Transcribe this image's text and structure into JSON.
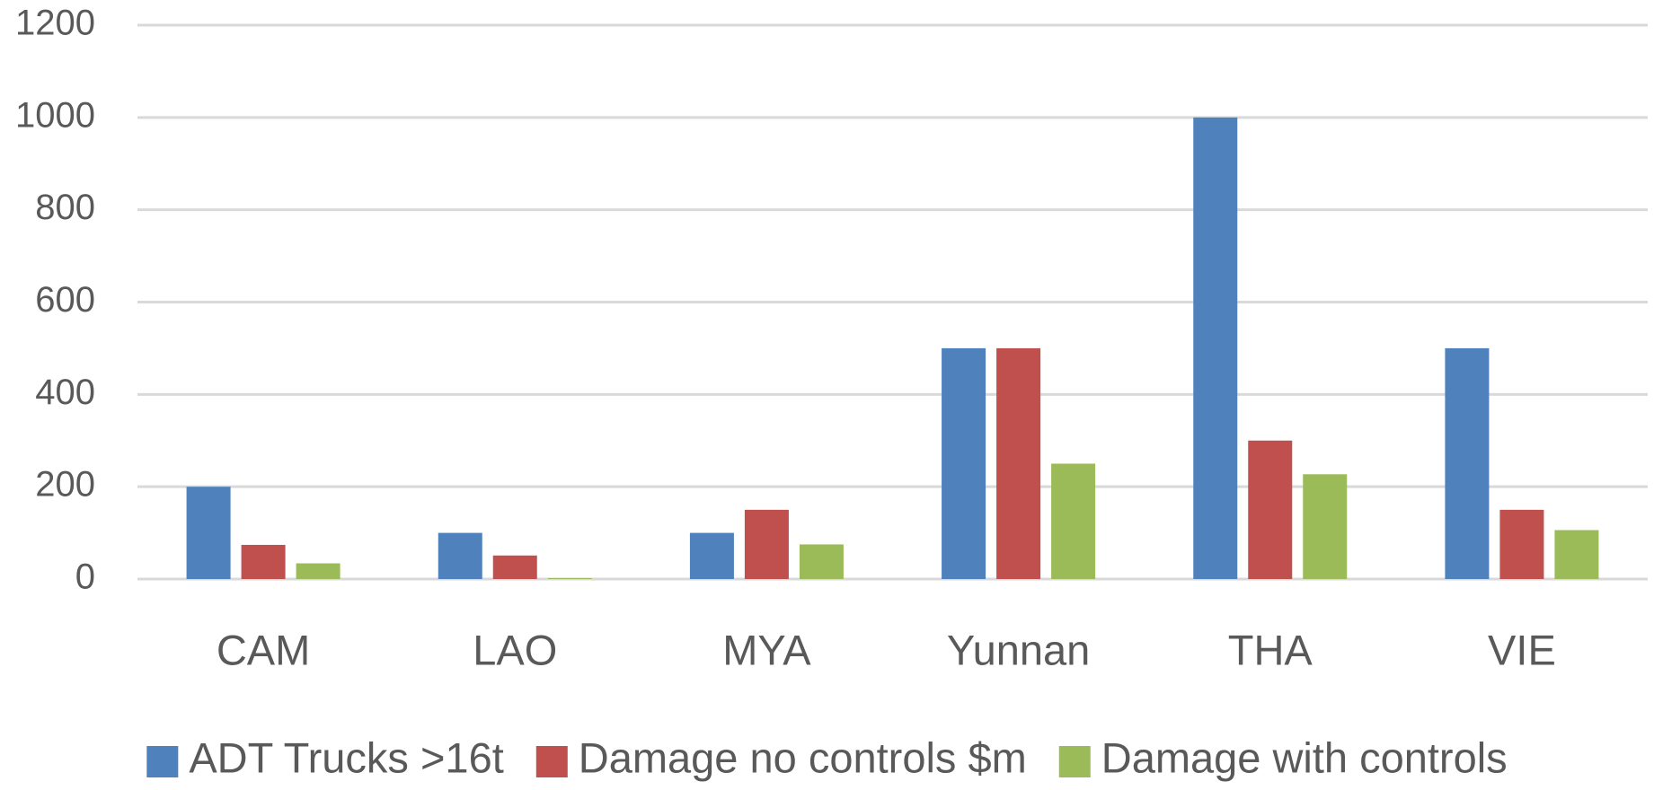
{
  "chart_data": {
    "type": "bar",
    "categories": [
      "CAM",
      "LAO",
      "MYA",
      "Yunnan",
      "THA",
      "VIE"
    ],
    "series": [
      {
        "name": "ADT Trucks >16t",
        "color": "#4f81bd",
        "values": [
          200,
          100,
          100,
          500,
          1000,
          500
        ]
      },
      {
        "name": "Damage no controls $m",
        "color": "#c0504d",
        "values": [
          74,
          51,
          150,
          500,
          300,
          150
        ]
      },
      {
        "name": "Damage with controls",
        "color": "#9bbb59",
        "values": [
          34,
          2,
          75,
          250,
          227,
          106
        ]
      }
    ],
    "ylim": [
      0,
      1200
    ],
    "yticks": [
      0,
      200,
      400,
      600,
      800,
      1000,
      1200
    ],
    "grid": true,
    "legend": "bottom"
  }
}
